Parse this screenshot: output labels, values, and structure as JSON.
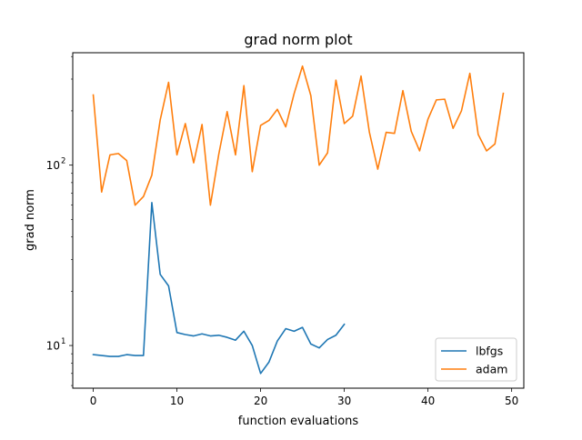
{
  "chart_data": {
    "type": "line",
    "title": "grad norm plot",
    "xlabel": "function evaluations",
    "ylabel": "grad norm",
    "yscale": "log",
    "xlim": [
      -2.45,
      51.45
    ],
    "ylim": [
      5.8,
      420
    ],
    "x_ticks": [
      0,
      10,
      20,
      30,
      40,
      50
    ],
    "y_ticks": [
      {
        "value": 10,
        "label": "10",
        "sup": "1"
      },
      {
        "value": 100,
        "label": "10",
        "sup": "2"
      }
    ],
    "grid": false,
    "legend_position": "lower-right",
    "series": [
      {
        "name": "lbfgs",
        "color": "#1f77b4",
        "x": [
          0,
          1,
          2,
          3,
          4,
          5,
          6,
          7,
          8,
          9,
          10,
          11,
          12,
          13,
          14,
          15,
          16,
          17,
          18,
          19,
          20,
          21,
          22,
          23,
          24,
          25,
          26,
          27,
          28,
          29,
          30
        ],
        "y": [
          8.9,
          8.8,
          8.7,
          8.7,
          8.9,
          8.8,
          8.8,
          62,
          24.8,
          21.4,
          11.8,
          11.5,
          11.3,
          11.6,
          11.3,
          11.4,
          11.1,
          10.7,
          12.0,
          10.0,
          7.0,
          8.1,
          10.6,
          12.4,
          12.0,
          12.6,
          10.2,
          9.7,
          10.8,
          11.4,
          13.1
        ]
      },
      {
        "name": "adam",
        "color": "#ff7f0e",
        "x": [
          0,
          1,
          2,
          3,
          4,
          5,
          6,
          7,
          8,
          9,
          10,
          11,
          12,
          13,
          14,
          15,
          16,
          17,
          18,
          19,
          20,
          21,
          22,
          23,
          24,
          25,
          26,
          27,
          28,
          29,
          30,
          31,
          32,
          33,
          34,
          35,
          36,
          37,
          38,
          39,
          40,
          41,
          42,
          43,
          44,
          45,
          46,
          47,
          48,
          49
        ],
        "y": [
          245,
          71,
          114,
          116,
          106,
          60,
          67,
          88,
          178,
          288,
          114,
          170,
          103,
          168,
          60,
          115,
          198,
          114,
          276,
          92,
          166,
          177,
          204,
          163,
          249,
          354,
          243,
          100,
          117,
          296,
          170,
          187,
          312,
          152,
          95,
          152,
          150,
          259,
          154,
          120,
          180,
          230,
          232,
          160,
          200,
          323,
          148,
          120,
          131,
          250
        ]
      }
    ]
  }
}
